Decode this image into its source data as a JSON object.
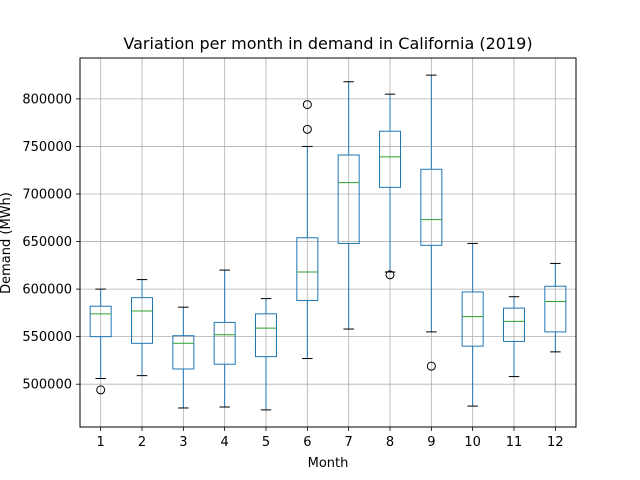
{
  "chart_data": {
    "type": "box",
    "title": "Variation per month in demand in California (2019)",
    "xlabel": "Month",
    "ylabel": "Demand (MWh)",
    "ylim": [
      455000,
      843000
    ],
    "yticks": [
      500000,
      550000,
      600000,
      650000,
      700000,
      750000,
      800000
    ],
    "grid": true,
    "colors": {
      "box": "#1f77b4",
      "median": "#2ca02c",
      "whisker_cap": "#000000",
      "grid": "#b0b0b0"
    },
    "categories": [
      "1",
      "2",
      "3",
      "4",
      "5",
      "6",
      "7",
      "8",
      "9",
      "10",
      "11",
      "12"
    ],
    "boxes": [
      {
        "month": "1",
        "whislo": 506000,
        "q1": 550000,
        "med": 574000,
        "q3": 582000,
        "whishi": 600000,
        "fliers": [
          494000
        ]
      },
      {
        "month": "2",
        "whislo": 509000,
        "q1": 543000,
        "med": 577000,
        "q3": 591000,
        "whishi": 610000,
        "fliers": []
      },
      {
        "month": "3",
        "whislo": 475000,
        "q1": 516000,
        "med": 543000,
        "q3": 551000,
        "whishi": 581000,
        "fliers": []
      },
      {
        "month": "4",
        "whislo": 476000,
        "q1": 521000,
        "med": 552000,
        "q3": 565000,
        "whishi": 620000,
        "fliers": []
      },
      {
        "month": "5",
        "whislo": 473000,
        "q1": 529000,
        "med": 559000,
        "q3": 574000,
        "whishi": 590000,
        "fliers": []
      },
      {
        "month": "6",
        "whislo": 527000,
        "q1": 588000,
        "med": 618000,
        "q3": 654000,
        "whishi": 750000,
        "fliers": [
          768000,
          794000
        ]
      },
      {
        "month": "7",
        "whislo": 558000,
        "q1": 648000,
        "med": 712000,
        "q3": 741000,
        "whishi": 818000,
        "fliers": []
      },
      {
        "month": "8",
        "whislo": 618000,
        "q1": 707000,
        "med": 739000,
        "q3": 766000,
        "whishi": 805000,
        "fliers": [
          615000
        ]
      },
      {
        "month": "9",
        "whislo": 555000,
        "q1": 646000,
        "med": 673000,
        "q3": 726000,
        "whishi": 825000,
        "fliers": [
          519000
        ]
      },
      {
        "month": "10",
        "whislo": 477000,
        "q1": 540000,
        "med": 571000,
        "q3": 597000,
        "whishi": 648000,
        "fliers": []
      },
      {
        "month": "11",
        "whislo": 508000,
        "q1": 545000,
        "med": 566000,
        "q3": 580000,
        "whishi": 592000,
        "fliers": []
      },
      {
        "month": "12",
        "whislo": 534000,
        "q1": 555000,
        "med": 587000,
        "q3": 603000,
        "whishi": 627000,
        "fliers": []
      }
    ]
  }
}
